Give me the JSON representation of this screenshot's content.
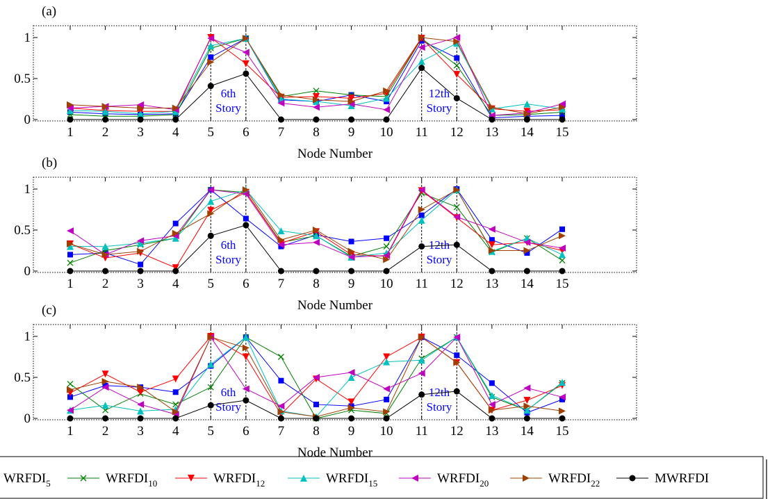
{
  "chart_data": [
    {
      "type": "line",
      "panel_label": "(a)",
      "xlabel": "Node Number",
      "x": [
        1,
        2,
        3,
        4,
        5,
        6,
        7,
        8,
        9,
        10,
        11,
        12,
        13,
        14,
        15
      ],
      "ylim": [
        0,
        1
      ],
      "yticks": [
        "0",
        "0.5",
        "1"
      ],
      "annotations": [
        {
          "lines": [
            "6th",
            "Story"
          ],
          "x": 5
        },
        {
          "lines": [
            "12th",
            "Story"
          ],
          "x": 11
        }
      ],
      "series": [
        {
          "name": "WRFDI5",
          "values": [
            0.09,
            0.07,
            0.06,
            0.07,
            0.76,
            0.99,
            0.24,
            0.22,
            0.3,
            0.22,
            0.96,
            0.75,
            0.02,
            0.04,
            0.05
          ]
        },
        {
          "name": "WRFDI10",
          "values": [
            0.06,
            0.04,
            0.04,
            0.06,
            0.87,
            0.99,
            0.28,
            0.35,
            0.3,
            0.28,
            0.99,
            0.66,
            0.05,
            0.06,
            0.09
          ]
        },
        {
          "name": "WRFDI12",
          "values": [
            0.14,
            0.11,
            0.1,
            0.1,
            1.0,
            0.68,
            0.27,
            0.28,
            0.26,
            0.32,
            0.99,
            0.55,
            0.13,
            0.1,
            0.12
          ]
        },
        {
          "name": "WRFDI15",
          "values": [
            0.11,
            0.1,
            0.07,
            0.1,
            0.9,
            0.99,
            0.25,
            0.22,
            0.17,
            0.26,
            0.71,
            0.93,
            0.13,
            0.19,
            0.13
          ]
        },
        {
          "name": "WRFDI20",
          "values": [
            0.14,
            0.16,
            0.18,
            0.12,
            0.99,
            0.82,
            0.2,
            0.15,
            0.19,
            0.12,
            0.88,
            1.0,
            0.05,
            0.08,
            0.19
          ]
        },
        {
          "name": "WRFDI22",
          "values": [
            0.18,
            0.16,
            0.14,
            0.14,
            0.7,
            0.99,
            0.3,
            0.24,
            0.22,
            0.35,
            1.0,
            0.95,
            0.15,
            0.07,
            0.15
          ]
        },
        {
          "name": "MWRFDI",
          "values": [
            0.0,
            0.0,
            0.0,
            0.0,
            0.41,
            0.56,
            0.0,
            0.0,
            0.0,
            0.0,
            0.63,
            0.26,
            0.0,
            0.0,
            0.0
          ]
        }
      ]
    },
    {
      "type": "line",
      "panel_label": "(b)",
      "xlabel": "Node Number",
      "x": [
        1,
        2,
        3,
        4,
        5,
        6,
        7,
        8,
        9,
        10,
        11,
        12,
        13,
        14,
        15
      ],
      "ylim": [
        0,
        1
      ],
      "yticks": [
        "0",
        "0.5",
        "1"
      ],
      "annotations": [
        {
          "lines": [
            "6th",
            "Story"
          ],
          "x": 5
        },
        {
          "lines": [
            "12th",
            "Story"
          ],
          "x": 11
        }
      ],
      "series": [
        {
          "name": "WRFDI5",
          "values": [
            0.2,
            0.22,
            0.08,
            0.58,
            0.99,
            0.64,
            0.3,
            0.44,
            0.36,
            0.4,
            0.68,
            1.0,
            0.38,
            0.22,
            0.51
          ]
        },
        {
          "name": "WRFDI10",
          "values": [
            0.1,
            0.25,
            0.32,
            0.4,
            0.99,
            0.96,
            0.35,
            0.43,
            0.18,
            0.3,
            0.95,
            0.78,
            0.23,
            0.4,
            0.13
          ]
        },
        {
          "name": "WRFDI12",
          "values": [
            0.33,
            0.16,
            0.22,
            0.04,
            0.74,
            0.96,
            0.34,
            0.48,
            0.2,
            0.18,
            0.98,
            0.65,
            0.32,
            0.35,
            0.25
          ]
        },
        {
          "name": "WRFDI15",
          "values": [
            0.3,
            0.3,
            0.34,
            0.4,
            0.85,
            0.99,
            0.49,
            0.43,
            0.17,
            0.22,
            0.62,
            0.99,
            0.24,
            0.4,
            0.2
          ]
        },
        {
          "name": "WRFDI20",
          "values": [
            0.49,
            0.2,
            0.37,
            0.43,
            0.99,
            0.94,
            0.32,
            0.35,
            0.17,
            0.19,
            0.99,
            0.66,
            0.51,
            0.35,
            0.28
          ]
        },
        {
          "name": "WRFDI22",
          "values": [
            0.33,
            0.2,
            0.24,
            0.46,
            0.7,
            0.99,
            0.38,
            0.5,
            0.24,
            0.14,
            0.75,
            0.99,
            0.25,
            0.25,
            0.43
          ]
        },
        {
          "name": "MWRFDI",
          "values": [
            0.0,
            0.0,
            0.0,
            0.0,
            0.43,
            0.56,
            0.0,
            0.0,
            0.0,
            0.0,
            0.3,
            0.32,
            0.0,
            0.0,
            0.0
          ]
        }
      ]
    },
    {
      "type": "line",
      "panel_label": "(c)",
      "xlabel": "Node Number",
      "x": [
        1,
        2,
        3,
        4,
        5,
        6,
        7,
        8,
        9,
        10,
        11,
        12,
        13,
        14,
        15
      ],
      "ylim": [
        0,
        1
      ],
      "yticks": [
        "0",
        "0.5",
        "1"
      ],
      "annotations": [
        {
          "lines": [
            "6th",
            "Story"
          ],
          "x": 5
        },
        {
          "lines": [
            "12th",
            "Story"
          ],
          "x": 11
        }
      ],
      "series": [
        {
          "name": "WRFDI5",
          "values": [
            0.26,
            0.4,
            0.38,
            0.32,
            0.64,
            0.99,
            0.46,
            0.17,
            0.15,
            0.23,
            0.99,
            0.77,
            0.43,
            0.07,
            0.23
          ]
        },
        {
          "name": "WRFDI10",
          "values": [
            0.42,
            0.1,
            0.3,
            0.17,
            0.38,
            0.99,
            0.75,
            0.0,
            0.1,
            0.06,
            0.73,
            0.99,
            0.26,
            0.1,
            0.43
          ]
        },
        {
          "name": "WRFDI12",
          "values": [
            0.31,
            0.54,
            0.32,
            0.48,
            1.0,
            0.75,
            0.05,
            0.48,
            0.2,
            0.75,
            0.99,
            0.68,
            0.1,
            0.22,
            0.4
          ]
        },
        {
          "name": "WRFDI15",
          "values": [
            0.1,
            0.16,
            0.09,
            0.11,
            0.66,
            0.99,
            0.09,
            0.02,
            0.5,
            0.69,
            0.71,
            0.99,
            0.28,
            0.1,
            0.44
          ]
        },
        {
          "name": "WRFDI20",
          "values": [
            0.1,
            0.38,
            0.17,
            0.05,
            0.99,
            0.36,
            0.15,
            0.5,
            0.56,
            0.36,
            0.55,
            0.99,
            0.17,
            0.37,
            0.26
          ]
        },
        {
          "name": "WRFDI22",
          "values": [
            0.35,
            0.45,
            0.38,
            0.08,
            0.99,
            0.86,
            0.08,
            0.02,
            0.13,
            0.08,
            0.99,
            0.68,
            0.1,
            0.15,
            0.09
          ]
        },
        {
          "name": "MWRFDI",
          "values": [
            0.0,
            0.0,
            0.0,
            0.0,
            0.16,
            0.22,
            0.0,
            0.0,
            0.0,
            0.0,
            0.29,
            0.33,
            0.0,
            0.0,
            0.0
          ]
        }
      ]
    }
  ],
  "legend": [
    {
      "base": "WRFDI",
      "sub": "5",
      "color": "#0000ff",
      "marker": "square"
    },
    {
      "base": "WRFDI",
      "sub": "10",
      "color": "#008000",
      "marker": "x"
    },
    {
      "base": "WRFDI",
      "sub": "12",
      "color": "#ff0000",
      "marker": "triangle-down"
    },
    {
      "base": "WRFDI",
      "sub": "15",
      "color": "#00c0c0",
      "marker": "triangle-up"
    },
    {
      "base": "WRFDI",
      "sub": "20",
      "color": "#c000c0",
      "marker": "triangle-left"
    },
    {
      "base": "WRFDI",
      "sub": "22",
      "color": "#a04000",
      "marker": "triangle-right"
    },
    {
      "base": "MWRFDI",
      "sub": "",
      "color": "#000000",
      "marker": "circle"
    }
  ]
}
